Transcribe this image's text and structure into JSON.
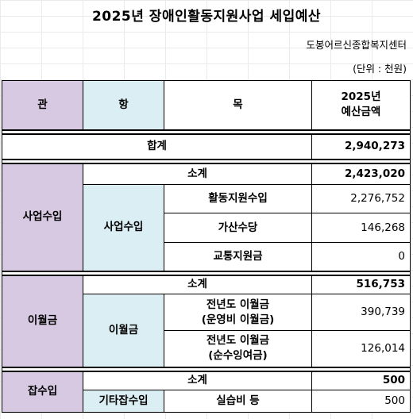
{
  "title": "2025년 장애인활동지원사업 세입예산",
  "org": "도봉어르신종합복지센터",
  "unit": "(단위 : 천원)",
  "header": {
    "gwan": "관",
    "hang": "항",
    "mok": "목",
    "budget_year": "2025년",
    "budget_label": "예산금액"
  },
  "total": {
    "label": "합계",
    "value": "2,940,273"
  },
  "business": {
    "gwan": "사업수입",
    "subtotal_label": "소계",
    "subtotal": "2,423,020",
    "hang": "사업수입",
    "items": [
      {
        "label": "활동지원수입",
        "value": "2,276,752"
      },
      {
        "label": "가산수당",
        "value": "146,268"
      },
      {
        "label": "교통지원금",
        "value": "0"
      }
    ]
  },
  "carryover": {
    "gwan": "이월금",
    "subtotal_label": "소계",
    "subtotal": "516,753",
    "hang": "이월금",
    "items": [
      {
        "line1": "전년도 이월금",
        "line2": "(운영비 이월금)",
        "value": "390,739"
      },
      {
        "line1": "전년도 이월금",
        "line2": "(순수잉여금)",
        "value": "126,014"
      }
    ]
  },
  "misc": {
    "gwan": "잡수입",
    "subtotal_label": "소계",
    "subtotal": "500",
    "hang": "기타잡수입",
    "items": [
      {
        "label": "실습비 등",
        "value": "500"
      }
    ]
  }
}
